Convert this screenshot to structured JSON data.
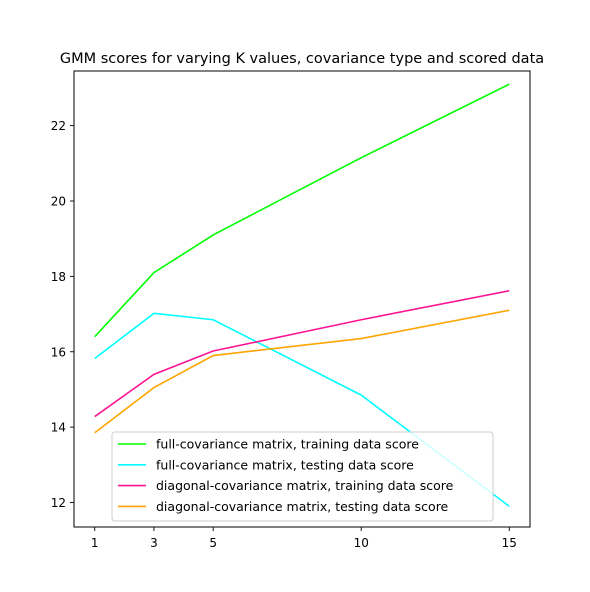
{
  "chart_data": {
    "type": "line",
    "title": "GMM scores for varying K values, covariance type and scored data",
    "xlabel": "",
    "ylabel": "",
    "x": [
      1,
      3,
      5,
      10,
      15
    ],
    "xticks": [
      1,
      3,
      5,
      10,
      15
    ],
    "yticks": [
      12,
      14,
      16,
      18,
      20,
      22
    ],
    "xlim": [
      0.3,
      15.7
    ],
    "ylim": [
      11.35,
      23.45
    ],
    "grid": false,
    "legend_position": "lower-center",
    "series": [
      {
        "name": "full-covariance matrix, training data score",
        "color": "#00ff00",
        "values": [
          16.4,
          18.1,
          19.1,
          21.15,
          23.1
        ]
      },
      {
        "name": "full-covariance matrix, testing data score",
        "color": "#00ffff",
        "values": [
          15.82,
          17.02,
          16.85,
          14.85,
          11.9
        ]
      },
      {
        "name": "diagonal-covariance matrix, training data score",
        "color": "#ff1493",
        "values": [
          14.28,
          15.4,
          16.02,
          16.85,
          17.62
        ]
      },
      {
        "name": "diagonal-covariance matrix, testing data score",
        "color": "#ffa500",
        "values": [
          13.85,
          15.05,
          15.9,
          16.35,
          17.1
        ]
      }
    ]
  }
}
